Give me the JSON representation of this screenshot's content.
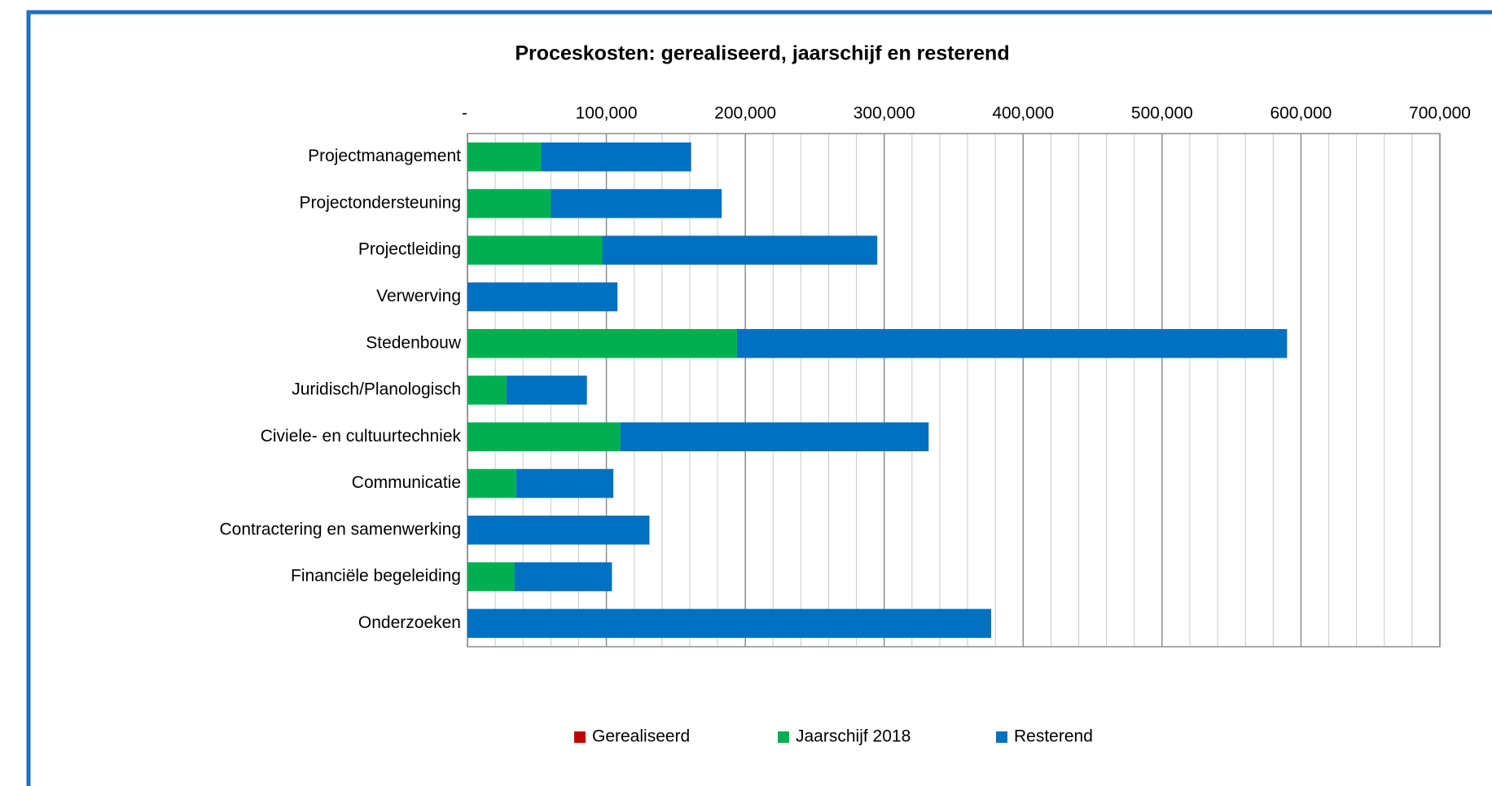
{
  "chart_data": {
    "type": "stacked_barh",
    "title": "Proceskosten: gerealiseerd, jaarschijf en resterend",
    "categories": [
      "Projectmanagement",
      "Projectondersteuning",
      "Projectleiding",
      "Verwerving",
      "Stedenbouw",
      "Juridisch/Planologisch",
      "Civiele- en cultuurtechniek",
      "Communicatie",
      "Contractering en samenwerking",
      "Financiële begeleiding",
      "Onderzoeken"
    ],
    "series": [
      {
        "name": "Gerealiseerd",
        "color": "#c00000",
        "values": [
          0,
          0,
          0,
          0,
          0,
          0,
          0,
          0,
          0,
          0,
          0
        ]
      },
      {
        "name": "Jaarschijf 2018",
        "color": "#00b050",
        "values": [
          53000,
          60000,
          97000,
          0,
          194000,
          28000,
          110000,
          35000,
          0,
          34000,
          0
        ]
      },
      {
        "name": "Resterend",
        "color": "#0070c0",
        "values": [
          108000,
          123000,
          198000,
          108000,
          396000,
          58000,
          222000,
          70000,
          131000,
          70000,
          377000
        ]
      }
    ],
    "xlim": [
      0,
      700000
    ],
    "xticks": [
      {
        "value": 0,
        "label": "-"
      },
      {
        "value": 100000,
        "label": "100,000"
      },
      {
        "value": 200000,
        "label": "200,000"
      },
      {
        "value": 300000,
        "label": "300,000"
      },
      {
        "value": 400000,
        "label": "400,000"
      },
      {
        "value": 500000,
        "label": "500,000"
      },
      {
        "value": 600000,
        "label": "600,000"
      },
      {
        "value": 700000,
        "label": "700,000"
      }
    ],
    "xminorticks": [
      20000,
      40000,
      60000,
      80000,
      120000,
      140000,
      160000,
      180000,
      220000,
      240000,
      260000,
      280000,
      320000,
      340000,
      360000,
      380000,
      420000,
      440000,
      460000,
      480000,
      520000,
      540000,
      560000,
      580000,
      620000,
      640000,
      660000,
      680000
    ],
    "grid": true,
    "legend": "bottom"
  }
}
